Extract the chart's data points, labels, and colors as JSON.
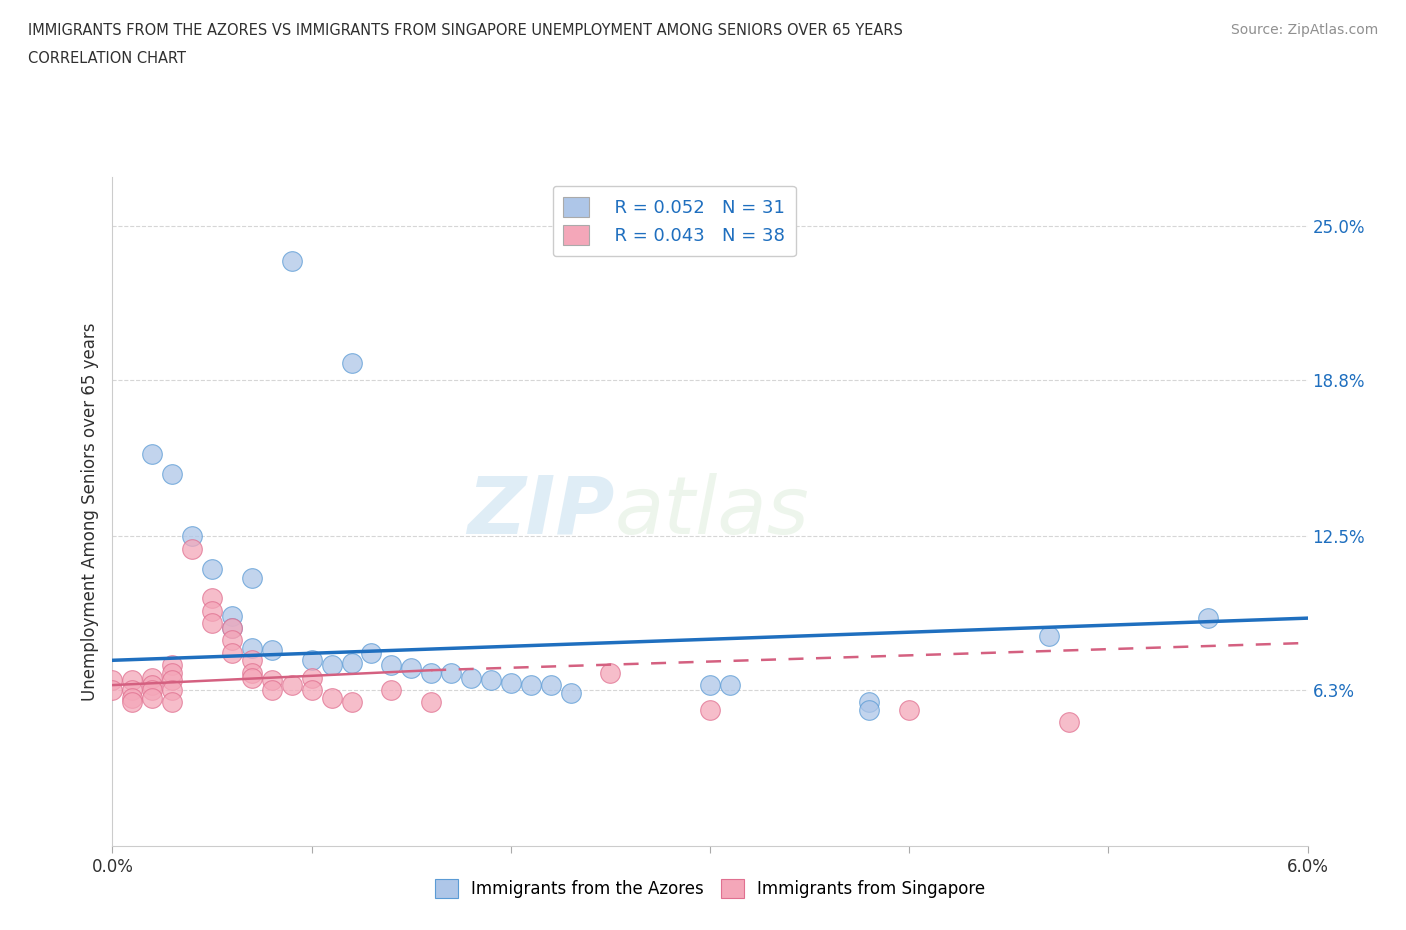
{
  "title_line1": "IMMIGRANTS FROM THE AZORES VS IMMIGRANTS FROM SINGAPORE UNEMPLOYMENT AMONG SENIORS OVER 65 YEARS",
  "title_line2": "CORRELATION CHART",
  "source_text": "Source: ZipAtlas.com",
  "ylabel": "Unemployment Among Seniors over 65 years",
  "xlim": [
    0.0,
    0.06
  ],
  "ylim": [
    0.0,
    0.27
  ],
  "xtick_positions": [
    0.0,
    0.01,
    0.02,
    0.03,
    0.04,
    0.05,
    0.06
  ],
  "xticklabels": [
    "0.0%",
    "",
    "",
    "",
    "",
    "",
    "6.0%"
  ],
  "ytick_positions": [
    0.063,
    0.125,
    0.188,
    0.25
  ],
  "ytick_labels": [
    "6.3%",
    "12.5%",
    "18.8%",
    "25.0%"
  ],
  "watermark_zip": "ZIP",
  "watermark_atlas": "atlas",
  "legend_entries": [
    {
      "label": "Immigrants from the Azores",
      "color": "#aec6e8",
      "edge": "#5b9bd5",
      "R": 0.052,
      "N": 31
    },
    {
      "label": "Immigrants from Singapore",
      "color": "#f4a7b9",
      "edge": "#e07090",
      "R": 0.043,
      "N": 38
    }
  ],
  "azores_points": [
    [
      0.009,
      0.236
    ],
    [
      0.012,
      0.195
    ],
    [
      0.002,
      0.158
    ],
    [
      0.003,
      0.15
    ],
    [
      0.004,
      0.125
    ],
    [
      0.005,
      0.112
    ],
    [
      0.007,
      0.108
    ],
    [
      0.006,
      0.093
    ],
    [
      0.006,
      0.088
    ],
    [
      0.007,
      0.08
    ],
    [
      0.008,
      0.079
    ],
    [
      0.01,
      0.075
    ],
    [
      0.011,
      0.073
    ],
    [
      0.012,
      0.074
    ],
    [
      0.013,
      0.078
    ],
    [
      0.014,
      0.073
    ],
    [
      0.015,
      0.072
    ],
    [
      0.016,
      0.07
    ],
    [
      0.017,
      0.07
    ],
    [
      0.018,
      0.068
    ],
    [
      0.019,
      0.067
    ],
    [
      0.02,
      0.066
    ],
    [
      0.021,
      0.065
    ],
    [
      0.022,
      0.065
    ],
    [
      0.023,
      0.062
    ],
    [
      0.03,
      0.065
    ],
    [
      0.031,
      0.065
    ],
    [
      0.038,
      0.058
    ],
    [
      0.038,
      0.055
    ],
    [
      0.047,
      0.085
    ],
    [
      0.055,
      0.092
    ]
  ],
  "singapore_points": [
    [
      0.0,
      0.067
    ],
    [
      0.0,
      0.063
    ],
    [
      0.001,
      0.067
    ],
    [
      0.001,
      0.063
    ],
    [
      0.001,
      0.06
    ],
    [
      0.001,
      0.058
    ],
    [
      0.002,
      0.068
    ],
    [
      0.002,
      0.065
    ],
    [
      0.002,
      0.063
    ],
    [
      0.002,
      0.06
    ],
    [
      0.003,
      0.073
    ],
    [
      0.003,
      0.07
    ],
    [
      0.003,
      0.067
    ],
    [
      0.003,
      0.063
    ],
    [
      0.003,
      0.058
    ],
    [
      0.004,
      0.12
    ],
    [
      0.005,
      0.1
    ],
    [
      0.005,
      0.095
    ],
    [
      0.005,
      0.09
    ],
    [
      0.006,
      0.088
    ],
    [
      0.006,
      0.083
    ],
    [
      0.006,
      0.078
    ],
    [
      0.007,
      0.075
    ],
    [
      0.007,
      0.07
    ],
    [
      0.007,
      0.068
    ],
    [
      0.008,
      0.067
    ],
    [
      0.008,
      0.063
    ],
    [
      0.009,
      0.065
    ],
    [
      0.01,
      0.068
    ],
    [
      0.01,
      0.063
    ],
    [
      0.011,
      0.06
    ],
    [
      0.012,
      0.058
    ],
    [
      0.014,
      0.063
    ],
    [
      0.016,
      0.058
    ],
    [
      0.025,
      0.07
    ],
    [
      0.03,
      0.055
    ],
    [
      0.04,
      0.055
    ],
    [
      0.048,
      0.05
    ]
  ],
  "azores_line": [
    0.0,
    0.06,
    0.075,
    0.092
  ],
  "singapore_line_solid": [
    0.0,
    0.016,
    0.065,
    0.071
  ],
  "singapore_line_dashed": [
    0.016,
    0.06,
    0.071,
    0.082
  ],
  "azores_line_color": "#1f6fbf",
  "singapore_line_color": "#d46080",
  "azores_marker_color": "#aec6e8",
  "singapore_marker_color": "#f4a7b9",
  "azores_edge_color": "#5b9bd5",
  "singapore_edge_color": "#e07090",
  "grid_color": "#cccccc",
  "background_color": "#ffffff",
  "title_color": "#303030",
  "source_color": "#909090",
  "axis_label_color": "#1f6fbf"
}
